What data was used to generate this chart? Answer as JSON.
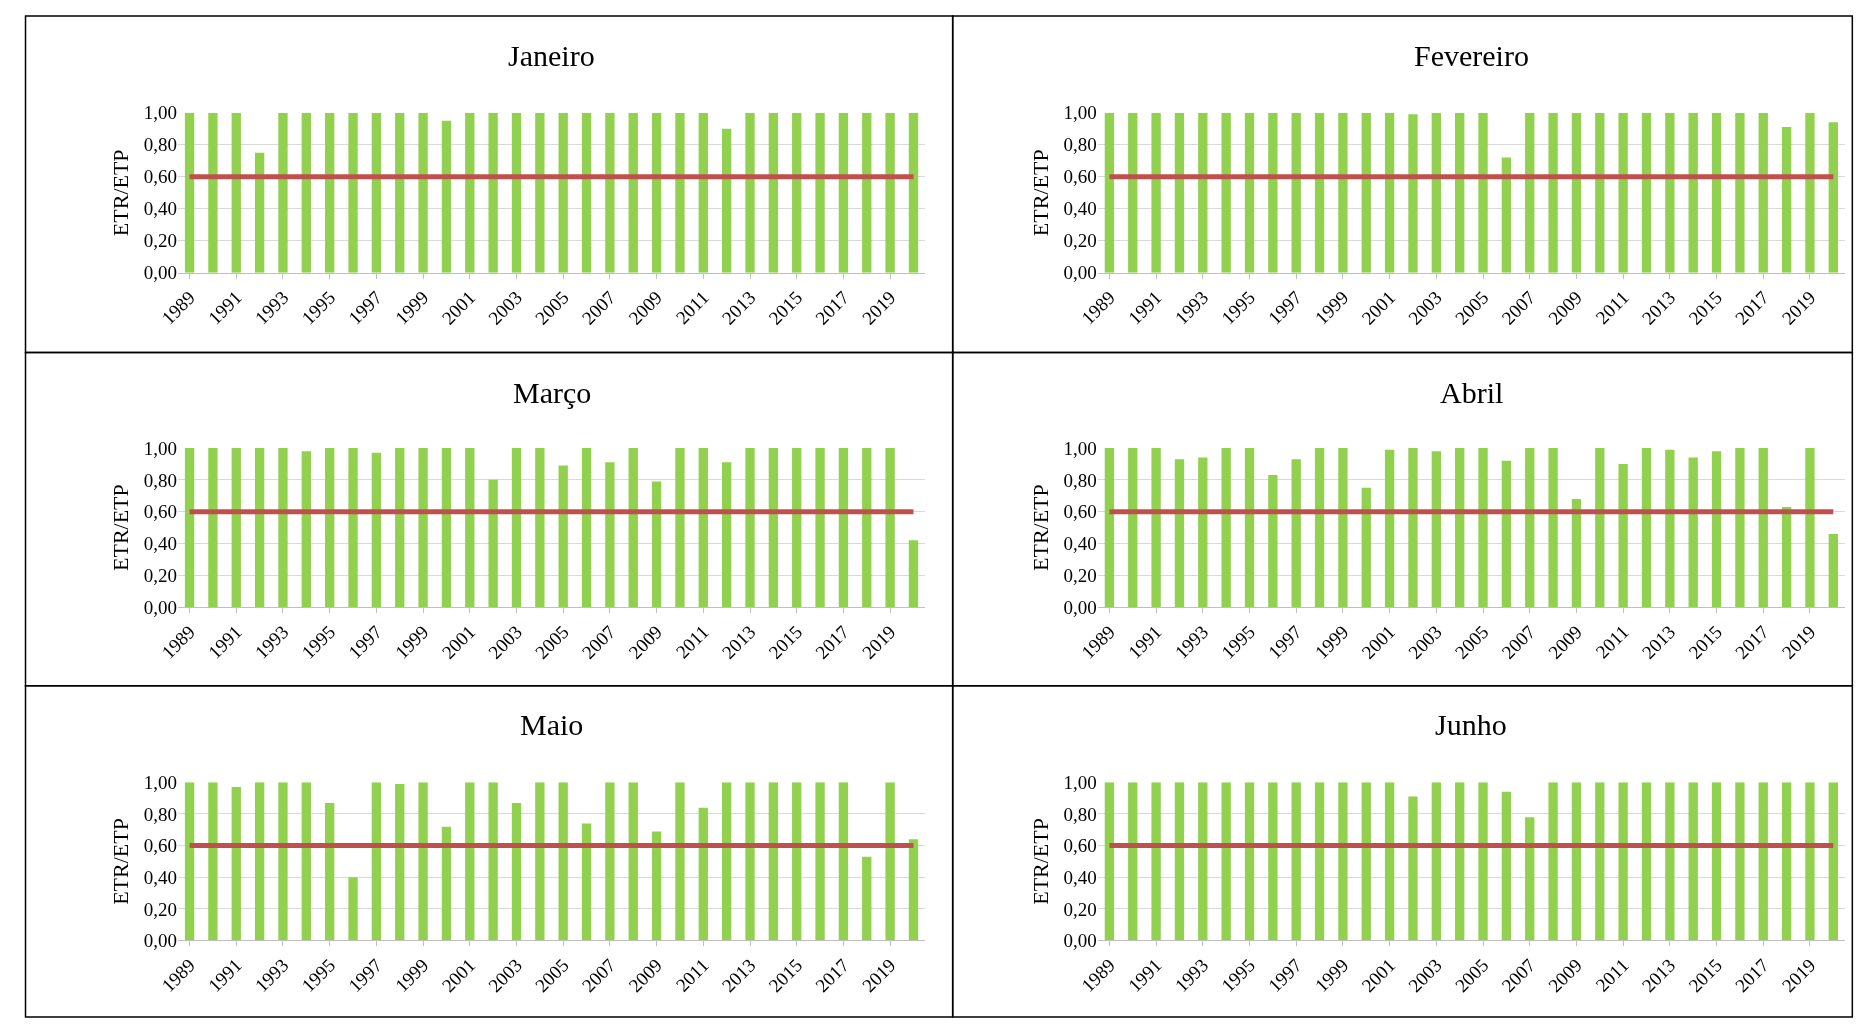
{
  "chart_data": [
    {
      "type": "bar",
      "title": "Janeiro",
      "ylabel": "ETR/ETP",
      "categories": [
        "1989",
        null,
        "1991",
        null,
        "1993",
        null,
        "1995",
        null,
        "1997",
        null,
        "1999",
        null,
        "2001",
        null,
        "2003",
        null,
        "2005",
        null,
        "2007",
        null,
        "2009",
        null,
        "2011",
        null,
        "2013",
        null,
        "2015",
        null,
        "2017",
        null,
        "2019",
        null
      ],
      "color": "#92d050",
      "values": [
        1,
        1,
        1,
        0.75,
        1,
        1,
        1,
        1,
        1,
        1,
        1,
        0.95,
        1,
        1,
        1,
        1,
        1,
        1,
        1,
        1,
        1,
        1,
        1,
        0.9,
        1,
        1,
        1,
        1,
        1,
        1,
        1,
        1
      ],
      "ylim": [
        0,
        1
      ],
      "yticks": [
        {
          "value": 0,
          "label": "0,00"
        },
        {
          "value": 0.2,
          "label": "0,20"
        },
        {
          "value": 0.4,
          "label": "0,40"
        },
        {
          "value": 0.6,
          "label": "0,60"
        },
        {
          "value": 0.8,
          "label": "0,80"
        },
        {
          "value": 1,
          "label": "1,00"
        }
      ],
      "grid": "y",
      "ref_lines": [
        {
          "axis": "y",
          "value": 0.6,
          "color": "#c0504d"
        }
      ]
    },
    {
      "type": "bar",
      "title": "Fevereiro",
      "ylabel": "ETR/ETP",
      "categories": [
        "1989",
        null,
        "1991",
        null,
        "1993",
        null,
        "1995",
        null,
        "1997",
        null,
        "1999",
        null,
        "2001",
        null,
        "2003",
        null,
        "2005",
        null,
        "2007",
        null,
        "2009",
        null,
        "2011",
        null,
        "2013",
        null,
        "2015",
        null,
        "2017",
        null,
        "2019",
        null
      ],
      "color": "#92d050",
      "values": [
        1,
        1,
        1,
        1,
        1,
        1,
        1,
        1,
        1,
        1,
        1,
        1,
        1,
        0.99,
        1,
        1,
        1,
        0.72,
        1,
        1,
        1,
        1,
        1,
        1,
        1,
        1,
        1,
        1,
        1,
        0.91,
        1,
        0.94
      ],
      "ylim": [
        0,
        1
      ],
      "yticks": [
        {
          "value": 0,
          "label": "0,00"
        },
        {
          "value": 0.2,
          "label": "0,20"
        },
        {
          "value": 0.4,
          "label": "0,40"
        },
        {
          "value": 0.6,
          "label": "0,60"
        },
        {
          "value": 0.8,
          "label": "0,80"
        },
        {
          "value": 1,
          "label": "1,00"
        }
      ],
      "grid": "y",
      "ref_lines": [
        {
          "axis": "y",
          "value": 0.6,
          "color": "#c0504d"
        }
      ]
    },
    {
      "type": "bar",
      "title": "Março",
      "ylabel": "ETR/ETP",
      "categories": [
        "1989",
        null,
        "1991",
        null,
        "1993",
        null,
        "1995",
        null,
        "1997",
        null,
        "1999",
        null,
        "2001",
        null,
        "2003",
        null,
        "2005",
        null,
        "2007",
        null,
        "2009",
        null,
        "2011",
        null,
        "2013",
        null,
        "2015",
        null,
        "2017",
        null,
        "2019",
        null
      ],
      "color": "#92d050",
      "values": [
        1,
        1,
        1,
        1,
        1,
        0.98,
        1,
        1,
        0.97,
        1,
        1,
        1,
        1,
        0.8,
        1,
        1,
        0.89,
        1,
        0.91,
        1,
        0.79,
        1,
        1,
        0.91,
        1,
        1,
        1,
        1,
        1,
        1,
        1,
        0.42
      ],
      "ylim": [
        0,
        1
      ],
      "yticks": [
        {
          "value": 0,
          "label": "0,00"
        },
        {
          "value": 0.2,
          "label": "0,20"
        },
        {
          "value": 0.4,
          "label": "0,40"
        },
        {
          "value": 0.6,
          "label": "0,60"
        },
        {
          "value": 0.8,
          "label": "0,80"
        },
        {
          "value": 1,
          "label": "1,00"
        }
      ],
      "grid": "y",
      "ref_lines": [
        {
          "axis": "y",
          "value": 0.6,
          "color": "#c0504d"
        }
      ]
    },
    {
      "type": "bar",
      "title": "Abril",
      "ylabel": "ETR/ETP",
      "categories": [
        "1989",
        null,
        "1991",
        null,
        "1993",
        null,
        "1995",
        null,
        "1997",
        null,
        "1999",
        null,
        "2001",
        null,
        "2003",
        null,
        "2005",
        null,
        "2007",
        null,
        "2009",
        null,
        "2011",
        null,
        "2013",
        null,
        "2015",
        null,
        "2017",
        null,
        "2019",
        null
      ],
      "color": "#92d050",
      "values": [
        1,
        1,
        1,
        0.93,
        0.94,
        1,
        1,
        0.83,
        0.93,
        1,
        1,
        0.75,
        0.99,
        1,
        0.98,
        1,
        1,
        0.92,
        1,
        1,
        0.68,
        1,
        0.9,
        1,
        0.99,
        0.94,
        0.98,
        1,
        1,
        0.63,
        1,
        0.46
      ],
      "ylim": [
        0,
        1
      ],
      "yticks": [
        {
          "value": 0,
          "label": "0,00"
        },
        {
          "value": 0.2,
          "label": "0,20"
        },
        {
          "value": 0.4,
          "label": "0,40"
        },
        {
          "value": 0.6,
          "label": "0,60"
        },
        {
          "value": 0.8,
          "label": "0,80"
        },
        {
          "value": 1,
          "label": "1,00"
        }
      ],
      "grid": "y",
      "ref_lines": [
        {
          "axis": "y",
          "value": 0.6,
          "color": "#c0504d"
        }
      ]
    },
    {
      "type": "bar",
      "title": "Maio",
      "ylabel": "ETR/ETP",
      "categories": [
        "1989",
        null,
        "1991",
        null,
        "1993",
        null,
        "1995",
        null,
        "1997",
        null,
        "1999",
        null,
        "2001",
        null,
        "2003",
        null,
        "2005",
        null,
        "2007",
        null,
        "2009",
        null,
        "2011",
        null,
        "2013",
        null,
        "2015",
        null,
        "2017",
        null,
        "2019",
        null
      ],
      "color": "#92d050",
      "values": [
        1,
        1,
        0.97,
        1,
        1,
        1,
        0.87,
        0.4,
        1,
        0.99,
        1,
        0.72,
        1,
        1,
        0.87,
        1,
        1,
        0.74,
        1,
        1,
        0.69,
        1,
        0.84,
        1,
        1,
        1,
        1,
        1,
        1,
        0.53,
        1,
        0.64
      ],
      "ylim": [
        0,
        1
      ],
      "yticks": [
        {
          "value": 0,
          "label": "0,00"
        },
        {
          "value": 0.2,
          "label": "0,20"
        },
        {
          "value": 0.4,
          "label": "0,40"
        },
        {
          "value": 0.6,
          "label": "0,60"
        },
        {
          "value": 0.8,
          "label": "0,80"
        },
        {
          "value": 1,
          "label": "1,00"
        }
      ],
      "grid": "y",
      "ref_lines": [
        {
          "axis": "y",
          "value": 0.6,
          "color": "#c0504d"
        }
      ]
    },
    {
      "type": "bar",
      "title": "Junho",
      "ylabel": "ETR/ETP",
      "categories": [
        "1989",
        null,
        "1991",
        null,
        "1993",
        null,
        "1995",
        null,
        "1997",
        null,
        "1999",
        null,
        "2001",
        null,
        "2003",
        null,
        "2005",
        null,
        "2007",
        null,
        "2009",
        null,
        "2011",
        null,
        "2013",
        null,
        "2015",
        null,
        "2017",
        null,
        "2019",
        null
      ],
      "color": "#92d050",
      "values": [
        1,
        1,
        1,
        1,
        1,
        1,
        1,
        1,
        1,
        1,
        1,
        1,
        1,
        0.91,
        1,
        1,
        1,
        0.94,
        0.78,
        1,
        1,
        1,
        1,
        1,
        1,
        1,
        1,
        1,
        1,
        1,
        1,
        1
      ],
      "ylim": [
        0,
        1
      ],
      "yticks": [
        {
          "value": 0,
          "label": "0,00"
        },
        {
          "value": 0.2,
          "label": "0,20"
        },
        {
          "value": 0.4,
          "label": "0,40"
        },
        {
          "value": 0.6,
          "label": "0,60"
        },
        {
          "value": 0.8,
          "label": "0,80"
        },
        {
          "value": 1,
          "label": "1,00"
        }
      ],
      "grid": "y",
      "ref_lines": [
        {
          "axis": "y",
          "value": 0.6,
          "color": "#c0504d"
        }
      ]
    }
  ]
}
